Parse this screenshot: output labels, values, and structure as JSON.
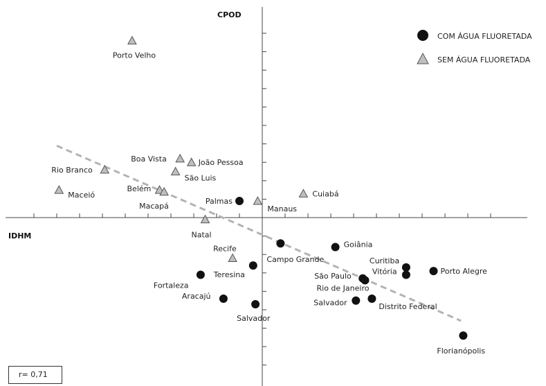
{
  "chart_data": {
    "type": "scatter",
    "title": "",
    "xlabel": "IDHM",
    "ylabel": "CPOD",
    "grid": false,
    "legend_position": "top-right",
    "correlation_label": "r= 0,71",
    "colors": {
      "with_fluoride": "#111111",
      "without_fluoride": "#bfbfbf",
      "trendline": "#b3b3b3"
    },
    "series": [
      {
        "name": "COM ÁGUA FLUORETADA",
        "marker": "circle",
        "points": [
          {
            "label": "Palmas",
            "x": -1.0,
            "y": 0.9
          },
          {
            "label": "Campo Grande",
            "x": 0.8,
            "y": -1.4
          },
          {
            "label": "Goiânia",
            "x": 3.2,
            "y": -1.6
          },
          {
            "label": "Teresina",
            "x": -0.4,
            "y": -2.6
          },
          {
            "label": "Fortaleza",
            "x": -2.7,
            "y": -3.1
          },
          {
            "label": "Aracajú",
            "x": -1.7,
            "y": -4.4
          },
          {
            "label": "Salvador",
            "x": -0.3,
            "y": -4.7
          },
          {
            "label": "Curitiba",
            "x": 6.3,
            "y": -2.7
          },
          {
            "label": "Vitória",
            "x": 6.3,
            "y": -3.1
          },
          {
            "label": "Porto Alegre",
            "x": 7.5,
            "y": -2.9
          },
          {
            "label": "São Paulo",
            "x": 4.4,
            "y": -3.3
          },
          {
            "label": "Rio de Janeiro",
            "x": 4.5,
            "y": -3.4
          },
          {
            "label": "Salvador",
            "x": 4.1,
            "y": -4.5
          },
          {
            "label": "Distrito Federal",
            "x": 4.8,
            "y": -4.4
          },
          {
            "label": "Florianópolis",
            "x": 8.8,
            "y": -6.4
          }
        ]
      },
      {
        "name": "SEM ÁGUA FLUORETADA",
        "marker": "triangle",
        "points": [
          {
            "label": "Porto Velho",
            "x": -5.7,
            "y": 9.6
          },
          {
            "label": "Boa Vista",
            "x": -3.6,
            "y": 3.2
          },
          {
            "label": "João Pessoa",
            "x": -3.1,
            "y": 3.0
          },
          {
            "label": "Rio Branco",
            "x": -6.9,
            "y": 2.6
          },
          {
            "label": "São Luis",
            "x": -3.8,
            "y": 2.5
          },
          {
            "label": "Maceió",
            "x": -8.9,
            "y": 1.5
          },
          {
            "label": "Belém",
            "x": -4.5,
            "y": 1.5
          },
          {
            "label": "Macapá",
            "x": -4.3,
            "y": 1.4
          },
          {
            "label": "Manaus",
            "x": -0.2,
            "y": 0.9
          },
          {
            "label": "Cuiabá",
            "x": 1.8,
            "y": 1.3
          },
          {
            "label": "Natal",
            "x": -2.5,
            "y": -0.1
          },
          {
            "label": "Recife",
            "x": -1.3,
            "y": -2.2
          }
        ]
      }
    ],
    "trendline": {
      "x": [
        -9.0,
        8.7
      ],
      "y": [
        3.9,
        -5.6
      ]
    },
    "xlim": [
      -10.6,
      10.9
    ],
    "ylim": [
      -8.8,
      10.4
    ]
  }
}
